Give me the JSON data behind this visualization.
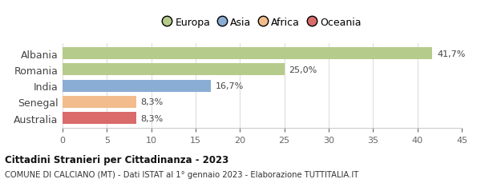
{
  "categories": [
    "Albania",
    "Romania",
    "India",
    "Senegal",
    "Australia"
  ],
  "values": [
    41.7,
    25.0,
    16.7,
    8.3,
    8.3
  ],
  "labels": [
    "41,7%",
    "25,0%",
    "16,7%",
    "8,3%",
    "8,3%"
  ],
  "colors": [
    "#b5cb8b",
    "#b5cb8b",
    "#8aadd4",
    "#f2bc8c",
    "#d96b6b"
  ],
  "legend": [
    {
      "label": "Europa",
      "color": "#b5cb8b"
    },
    {
      "label": "Asia",
      "color": "#8aadd4"
    },
    {
      "label": "Africa",
      "color": "#f2bc8c"
    },
    {
      "label": "Oceania",
      "color": "#d96b6b"
    }
  ],
  "xlim": [
    0,
    45
  ],
  "xticks": [
    0,
    5,
    10,
    15,
    20,
    25,
    30,
    35,
    40,
    45
  ],
  "title_bold": "Cittadini Stranieri per Cittadinanza - 2023",
  "subtitle": "COMUNE DI CALCIANO (MT) - Dati ISTAT al 1° gennaio 2023 - Elaborazione TUTTITALIA.IT",
  "background_color": "#ffffff",
  "bar_height": 0.75
}
